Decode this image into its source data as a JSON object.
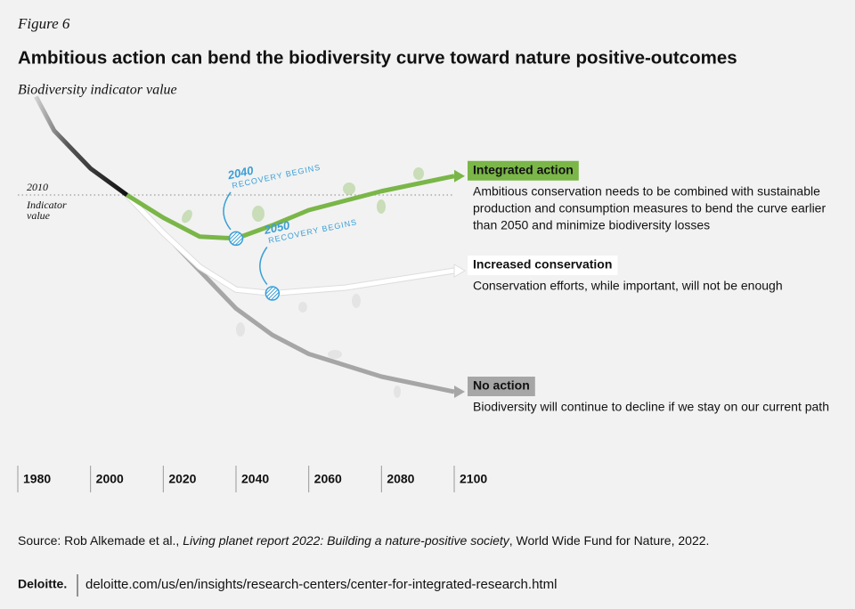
{
  "header": {
    "figure": "Figure 6",
    "title": "Ambitious action can bend the biodiversity curve toward nature positive-outcomes"
  },
  "chart_data": {
    "type": "line",
    "y_label": "Biodiversity indicator value",
    "xlim": [
      1980,
      2100
    ],
    "xticks": [
      1980,
      2000,
      2020,
      2040,
      2060,
      2080,
      2100
    ],
    "ylim": [
      0,
      100
    ],
    "history": {
      "x": [
        1985,
        1990,
        2000,
        2010
      ],
      "values": [
        98,
        89,
        79,
        72
      ]
    },
    "reference": {
      "x": 2010,
      "text": [
        "Indicator",
        "value"
      ]
    },
    "series": [
      {
        "name": "Integrated action",
        "color": "#7ab648",
        "description": [
          "Ambitious conservation needs to be combined with sustainable",
          "production and consumption measures to bend the curve earlier",
          "than 2050 and minimize biodiversity losses"
        ],
        "x": [
          2010,
          2020,
          2030,
          2040,
          2050,
          2060,
          2080,
          2100
        ],
        "values": [
          72,
          66,
          61,
          60.5,
          64,
          68,
          73,
          77
        ]
      },
      {
        "name": "Increased conservation",
        "color": "#ffffff",
        "description": [
          "Conservation efforts, while important, will not be enough"
        ],
        "x": [
          2010,
          2020,
          2030,
          2040,
          2050,
          2070,
          2100
        ],
        "values": [
          72,
          62,
          53,
          47,
          46,
          47.5,
          52
        ]
      },
      {
        "name": "No action",
        "color": "#a6a6a6",
        "description": [
          "Biodiversity will continue to decline if we stay on our current path"
        ],
        "x": [
          2010,
          2020,
          2030,
          2040,
          2050,
          2060,
          2080,
          2100
        ],
        "values": [
          72,
          62,
          52,
          42,
          35,
          30,
          24,
          20
        ]
      }
    ],
    "annotations": [
      {
        "x": 2040,
        "text": "RECOVERY BEGINS"
      },
      {
        "x": 2050,
        "text": "RECOVERY BEGINS"
      }
    ]
  },
  "source": {
    "prefix": "Source: Rob Alkemade et al., ",
    "title": "Living planet report 2022: Building a nature-positive society",
    "suffix": ", World Wide Fund for Nature, 2022."
  },
  "footer": {
    "brand": "Deloitte.",
    "url": "deloitte.com/us/en/insights/research-centers/center-for-integrated-research.html"
  }
}
